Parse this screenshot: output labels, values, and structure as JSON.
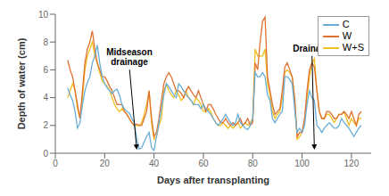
{
  "chart_data": {
    "type": "line",
    "xlabel": "Days after transplanting",
    "ylabel": "Depth of water (cm)",
    "xlim": [
      0,
      128
    ],
    "ylim": [
      0,
      10
    ],
    "xticks": [
      0,
      20,
      40,
      60,
      80,
      100,
      120
    ],
    "yticks": [
      0,
      2,
      4,
      6,
      8,
      10
    ],
    "grid": false,
    "legend": "upper right",
    "x": [
      5,
      6,
      7,
      8,
      9,
      10,
      11,
      12,
      13,
      14,
      15,
      16,
      17,
      18,
      19,
      20,
      21,
      22,
      23,
      24,
      25,
      26,
      27,
      28,
      29,
      30,
      31,
      32,
      33,
      34,
      35,
      36,
      37,
      38,
      39,
      40,
      41,
      42,
      43,
      44,
      45,
      46,
      47,
      48,
      49,
      50,
      51,
      52,
      53,
      54,
      55,
      56,
      57,
      58,
      59,
      60,
      61,
      62,
      63,
      64,
      65,
      66,
      67,
      68,
      69,
      70,
      71,
      72,
      73,
      74,
      75,
      76,
      77,
      78,
      79,
      80,
      81,
      82,
      83,
      84,
      85,
      86,
      87,
      88,
      89,
      90,
      91,
      92,
      93,
      94,
      95,
      96,
      97,
      98,
      99,
      100,
      101,
      102,
      103,
      104,
      105,
      106,
      107,
      108,
      109,
      110,
      111,
      112,
      113,
      114,
      115,
      116,
      117,
      118,
      119,
      120,
      121,
      122,
      123,
      124
    ],
    "series": [
      {
        "name": "C",
        "color": "#6aaed6",
        "values": [
          4.7,
          4.2,
          3.8,
          3.0,
          1.8,
          2.2,
          3.5,
          4.5,
          5.1,
          5.5,
          6.5,
          7.0,
          7.8,
          6.5,
          5.5,
          5.0,
          4.7,
          4.5,
          4.3,
          4.5,
          4.6,
          4.2,
          3.5,
          3.2,
          3.0,
          2.9,
          2.5,
          2.2,
          1.0,
          0.3,
          0.4,
          0.8,
          1.2,
          1.5,
          0.4,
          0.2,
          1.2,
          2.2,
          3.2,
          4.2,
          5.0,
          4.8,
          4.5,
          4.2,
          4.0,
          5.0,
          4.8,
          4.5,
          4.2,
          4.0,
          3.8,
          3.5,
          3.5,
          3.5,
          3.2,
          3.5,
          3.2,
          3.0,
          2.8,
          2.5,
          2.2,
          2.0,
          2.2,
          2.5,
          2.8,
          2.5,
          2.2,
          2.0,
          2.2,
          2.8,
          2.2,
          2.0,
          1.8,
          1.7,
          2.0,
          2.5,
          5.8,
          5.5,
          5.5,
          5.8,
          5.5,
          4.2,
          3.8,
          2.5,
          2.2,
          2.5,
          2.8,
          3.0,
          5.5,
          5.5,
          5.3,
          5.0,
          3.2,
          1.5,
          1.8,
          1.5,
          2.0,
          3.5,
          4.5,
          4.0,
          3.8,
          2.0,
          1.8,
          1.5,
          1.8,
          2.0,
          2.2,
          2.0,
          1.8,
          1.8,
          2.0,
          2.5,
          2.2,
          2.0,
          1.8,
          1.5,
          1.2,
          1.5,
          1.8,
          2.0
        ]
      },
      {
        "name": "W",
        "color": "#e07030",
        "values": [
          6.7,
          6.0,
          5.5,
          4.5,
          3.5,
          2.5,
          4.5,
          6.5,
          7.5,
          8.0,
          8.8,
          7.5,
          6.5,
          6.0,
          5.5,
          5.5,
          5.2,
          4.8,
          4.5,
          4.0,
          3.5,
          3.5,
          3.5,
          3.0,
          2.8,
          2.5,
          2.2,
          2.0,
          2.1,
          2.0,
          2.0,
          2.5,
          3.0,
          4.5,
          2.5,
          1.2,
          1.5,
          2.5,
          3.8,
          5.0,
          5.5,
          5.8,
          5.5,
          5.0,
          4.5,
          4.5,
          4.3,
          4.0,
          4.5,
          4.8,
          4.5,
          4.2,
          4.0,
          4.5,
          4.0,
          3.5,
          3.0,
          3.5,
          3.5,
          3.2,
          2.8,
          2.5,
          2.2,
          2.2,
          2.5,
          2.2,
          2.0,
          2.2,
          2.0,
          2.2,
          2.5,
          2.0,
          2.2,
          2.5,
          2.0,
          2.2,
          6.5,
          6.0,
          8.0,
          9.5,
          9.8,
          5.5,
          4.5,
          3.5,
          2.8,
          3.0,
          3.2,
          4.5,
          6.2,
          6.5,
          6.0,
          5.5,
          4.0,
          1.2,
          1.5,
          1.5,
          2.5,
          4.5,
          6.0,
          6.5,
          6.2,
          4.5,
          3.0,
          2.5,
          2.5,
          3.0,
          3.0,
          2.8,
          2.5,
          2.5,
          2.8,
          2.8,
          3.0,
          2.8,
          2.5,
          3.0,
          2.5,
          2.0,
          2.8,
          3.0
        ]
      },
      {
        "name": "W+S",
        "color": "#f0c020",
        "values": [
          4.0,
          4.5,
          5.0,
          4.5,
          3.2,
          2.5,
          4.0,
          6.0,
          7.0,
          7.5,
          8.0,
          7.0,
          6.5,
          5.8,
          5.2,
          5.0,
          4.8,
          4.5,
          4.0,
          3.5,
          3.2,
          3.0,
          3.2,
          3.0,
          2.8,
          2.5,
          2.2,
          2.0,
          2.0,
          2.0,
          2.2,
          2.8,
          3.5,
          4.5,
          2.2,
          1.0,
          1.2,
          2.0,
          2.5,
          4.5,
          5.0,
          4.5,
          4.2,
          4.0,
          4.5,
          4.2,
          3.8,
          4.0,
          4.5,
          4.0,
          3.8,
          3.5,
          4.0,
          3.8,
          3.5,
          3.0,
          3.0,
          3.2,
          3.0,
          2.5,
          2.2,
          2.0,
          2.0,
          2.2,
          2.0,
          1.8,
          2.0,
          1.8,
          2.0,
          2.2,
          1.8,
          2.0,
          2.2,
          2.0,
          2.2,
          2.5,
          7.5,
          7.0,
          7.0,
          7.0,
          7.5,
          5.0,
          4.2,
          3.0,
          2.5,
          2.8,
          3.0,
          4.0,
          5.8,
          6.0,
          5.8,
          5.5,
          3.8,
          1.0,
          1.2,
          1.5,
          2.2,
          4.0,
          5.5,
          6.5,
          6.8,
          4.5,
          3.0,
          2.5,
          2.5,
          2.8,
          2.8,
          2.5,
          2.2,
          2.5,
          2.8,
          2.8,
          3.0,
          2.5,
          2.0,
          2.5,
          2.2,
          2.0,
          2.5,
          2.5
        ]
      }
    ],
    "annotations": [
      {
        "text": "Midseason\ndrainage",
        "x": 33,
        "y": 0.25,
        "text_x": 30,
        "text_y": 6.2
      },
      {
        "text": "Drainage",
        "x": 105,
        "y": 0.25,
        "text_x": 104,
        "text_y": 7.2
      }
    ]
  }
}
